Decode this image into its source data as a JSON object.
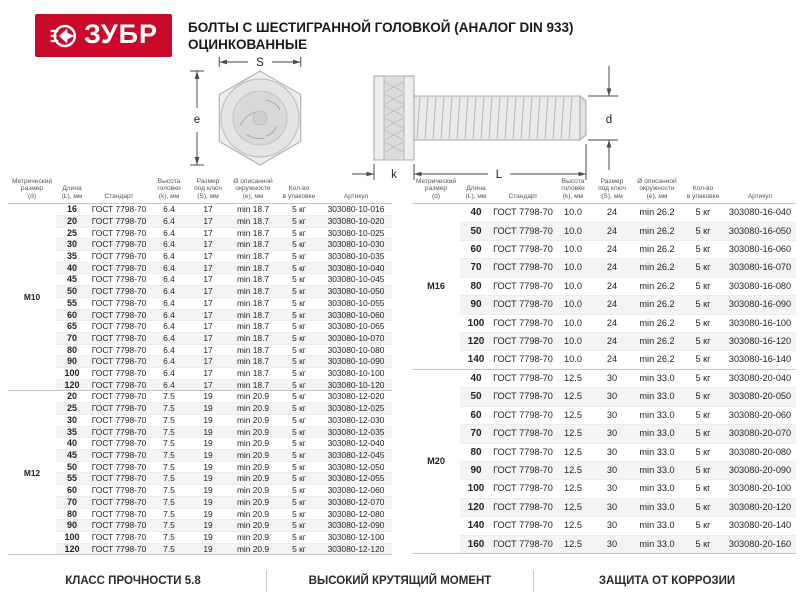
{
  "header": {
    "brand": "ЗУБР",
    "brand_color": "#c9082a",
    "title_line1": "БОЛТЫ С ШЕСТИГРАННОЙ ГОЛОВКОЙ (АНАЛОГ DIN 933)",
    "title_line2": "ОЦИНКОВАННЫЕ"
  },
  "diagram": {
    "dim_s": "S",
    "dim_e": "e",
    "dim_k": "k",
    "dim_l": "L",
    "dim_d": "d"
  },
  "columns": [
    "Метрический\nразмер\n(d)",
    "Длина\n(L), мм",
    "Стандарт",
    "Высота\nголовки\n(k), мм",
    "Размер\nпод ключ\n(S), мм",
    "Ø описанной\nокружности\n(e), мм",
    "Кол-во\nв упаковке",
    "Артикул"
  ],
  "tables": [
    {
      "groups": [
        {
          "size": "M10",
          "rows": [
            [
              "16",
              "ГОСТ 7798-70",
              "6.4",
              "17",
              "min 18.7",
              "5 кг",
              "303080-10-016"
            ],
            [
              "20",
              "ГОСТ 7798-70",
              "6.4",
              "17",
              "min 18.7",
              "5 кг",
              "303080-10-020"
            ],
            [
              "25",
              "ГОСТ 7798-70",
              "6.4",
              "17",
              "min 18.7",
              "5 кг",
              "303080-10-025"
            ],
            [
              "30",
              "ГОСТ 7798-70",
              "6.4",
              "17",
              "min 18.7",
              "5 кг",
              "303080-10-030"
            ],
            [
              "35",
              "ГОСТ 7798-70",
              "6.4",
              "17",
              "min 18.7",
              "5 кг",
              "303080-10-035"
            ],
            [
              "40",
              "ГОСТ 7798-70",
              "6.4",
              "17",
              "min 18.7",
              "5 кг",
              "303080-10-040"
            ],
            [
              "45",
              "ГОСТ 7798-70",
              "6.4",
              "17",
              "min 18.7",
              "5 кг",
              "303080-10-045"
            ],
            [
              "50",
              "ГОСТ 7798-70",
              "6.4",
              "17",
              "min 18.7",
              "5 кг",
              "303080-10-050"
            ],
            [
              "55",
              "ГОСТ 7798-70",
              "6.4",
              "17",
              "min 18.7",
              "5 кг",
              "303080-10-055"
            ],
            [
              "60",
              "ГОСТ 7798-70",
              "6.4",
              "17",
              "min 18.7",
              "5 кг",
              "303080-10-060"
            ],
            [
              "65",
              "ГОСТ 7798-70",
              "6.4",
              "17",
              "min 18.7",
              "5 кг",
              "303080-10-065"
            ],
            [
              "70",
              "ГОСТ 7798-70",
              "6.4",
              "17",
              "min 18.7",
              "5 кг",
              "303080-10-070"
            ],
            [
              "80",
              "ГОСТ 7798-70",
              "6.4",
              "17",
              "min 18.7",
              "5 кг",
              "303080-10-080"
            ],
            [
              "90",
              "ГОСТ 7798-70",
              "6.4",
              "17",
              "min 18.7",
              "5 кг",
              "303080-10-090"
            ],
            [
              "100",
              "ГОСТ 7798-70",
              "6.4",
              "17",
              "min 18.7",
              "5 кг",
              "303080-10-100"
            ],
            [
              "120",
              "ГОСТ 7798-70",
              "6.4",
              "17",
              "min 18.7",
              "5 кг",
              "303080-10-120"
            ]
          ]
        },
        {
          "size": "M12",
          "rows": [
            [
              "20",
              "ГОСТ 7798-70",
              "7.5",
              "19",
              "min 20.9",
              "5 кг",
              "303080-12-020"
            ],
            [
              "25",
              "ГОСТ 7798-70",
              "7.5",
              "19",
              "min 20.9",
              "5 кг",
              "303080-12-025"
            ],
            [
              "30",
              "ГОСТ 7798-70",
              "7.5",
              "19",
              "min 20.9",
              "5 кг",
              "303080-12-030"
            ],
            [
              "35",
              "ГОСТ 7798-70",
              "7.5",
              "19",
              "min 20.9",
              "5 кг",
              "303080-12-035"
            ],
            [
              "40",
              "ГОСТ 7798-70",
              "7.5",
              "19",
              "min 20.9",
              "5 кг",
              "303080-12-040"
            ],
            [
              "45",
              "ГОСТ 7798-70",
              "7.5",
              "19",
              "min 20.9",
              "5 кг",
              "303080-12-045"
            ],
            [
              "50",
              "ГОСТ 7798-70",
              "7.5",
              "19",
              "min 20.9",
              "5 кг",
              "303080-12-050"
            ],
            [
              "55",
              "ГОСТ 7798-70",
              "7.5",
              "19",
              "min 20.9",
              "5 кг",
              "303080-12-055"
            ],
            [
              "60",
              "ГОСТ 7798-70",
              "7.5",
              "19",
              "min 20.9",
              "5 кг",
              "303080-12-060"
            ],
            [
              "70",
              "ГОСТ 7798-70",
              "7.5",
              "19",
              "min 20.9",
              "5 кг",
              "303080-12-070"
            ],
            [
              "80",
              "ГОСТ 7798-70",
              "7.5",
              "19",
              "min 20.9",
              "5 кг",
              "303080-12-080"
            ],
            [
              "90",
              "ГОСТ 7798-70",
              "7.5",
              "19",
              "min 20.9",
              "5 кг",
              "303080-12-090"
            ],
            [
              "100",
              "ГОСТ 7798-70",
              "7.5",
              "19",
              "min 20.9",
              "5 кг",
              "303080-12-100"
            ],
            [
              "120",
              "ГОСТ 7798-70",
              "7.5",
              "19",
              "min 20.9",
              "5 кг",
              "303080-12-120"
            ]
          ]
        }
      ]
    },
    {
      "groups": [
        {
          "size": "M16",
          "rows": [
            [
              "40",
              "ГОСТ 7798-70",
              "10.0",
              "24",
              "min 26.2",
              "5 кг",
              "303080-16-040"
            ],
            [
              "50",
              "ГОСТ 7798-70",
              "10.0",
              "24",
              "min 26.2",
              "5 кг",
              "303080-16-050"
            ],
            [
              "60",
              "ГОСТ 7798-70",
              "10.0",
              "24",
              "min 26.2",
              "5 кг",
              "303080-16-060"
            ],
            [
              "70",
              "ГОСТ 7798-70",
              "10.0",
              "24",
              "min 26.2",
              "5 кг",
              "303080-16-070"
            ],
            [
              "80",
              "ГОСТ 7798-70",
              "10.0",
              "24",
              "min 26.2",
              "5 кг",
              "303080-16-080"
            ],
            [
              "90",
              "ГОСТ 7798-70",
              "10.0",
              "24",
              "min 26.2",
              "5 кг",
              "303080-16-090"
            ],
            [
              "100",
              "ГОСТ 7798-70",
              "10.0",
              "24",
              "min 26.2",
              "5 кг",
              "303080-16-100"
            ],
            [
              "120",
              "ГОСТ 7798-70",
              "10.0",
              "24",
              "min 26.2",
              "5 кг",
              "303080-16-120"
            ],
            [
              "140",
              "ГОСТ 7798-70",
              "10.0",
              "24",
              "min 26.2",
              "5 кг",
              "303080-16-140"
            ]
          ]
        },
        {
          "size": "M20",
          "rows": [
            [
              "40",
              "ГОСТ 7798-70",
              "12.5",
              "30",
              "min 33.0",
              "5 кг",
              "303080-20-040"
            ],
            [
              "50",
              "ГОСТ 7798-70",
              "12.5",
              "30",
              "min 33.0",
              "5 кг",
              "303080-20-050"
            ],
            [
              "60",
              "ГОСТ 7798-70",
              "12.5",
              "30",
              "min 33.0",
              "5 кг",
              "303080-20-060"
            ],
            [
              "70",
              "ГОСТ 7798-70",
              "12.5",
              "30",
              "min 33.0",
              "5 кг",
              "303080-20-070"
            ],
            [
              "80",
              "ГОСТ 7798-70",
              "12.5",
              "30",
              "min 33.0",
              "5 кг",
              "303080-20-080"
            ],
            [
              "90",
              "ГОСТ 7798-70",
              "12.5",
              "30",
              "min 33.0",
              "5 кг",
              "303080-20-090"
            ],
            [
              "100",
              "ГОСТ 7798-70",
              "12.5",
              "30",
              "min 33.0",
              "5 кг",
              "303080-20-100"
            ],
            [
              "120",
              "ГОСТ 7798-70",
              "12.5",
              "30",
              "min 33.0",
              "5 кг",
              "303080-20-120"
            ],
            [
              "140",
              "ГОСТ 7798-70",
              "12.5",
              "30",
              "min 33.0",
              "5 кг",
              "303080-20-140"
            ],
            [
              "160",
              "ГОСТ 7798-70",
              "12.5",
              "30",
              "min 33.0",
              "5 кг",
              "303080-20-160"
            ]
          ]
        }
      ]
    }
  ],
  "footer": {
    "items": [
      "КЛАСС ПРОЧНОСТИ 5.8",
      "ВЫСОКИЙ КРУТЯЩИЙ МОМЕНТ",
      "ЗАЩИТА ОТ КОРРОЗИИ"
    ]
  }
}
